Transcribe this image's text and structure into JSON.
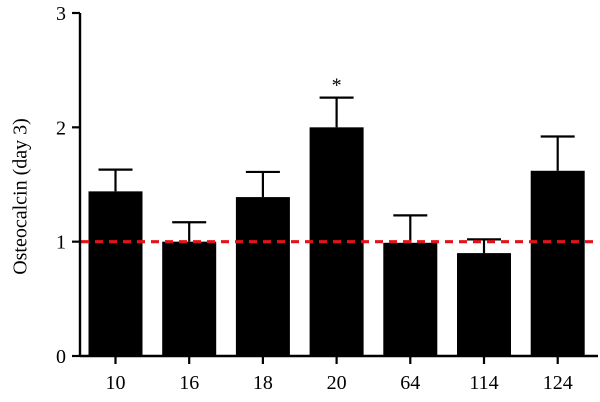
{
  "chart_data": {
    "type": "bar",
    "title": "",
    "xlabel": "",
    "ylabel": "Osteocalcin (day 3)",
    "ylim": [
      0,
      3
    ],
    "yticks": [
      0,
      1,
      2,
      3
    ],
    "categories": [
      "10",
      "16",
      "18",
      "20",
      "64",
      "114",
      "124"
    ],
    "values": [
      1.44,
      1.0,
      1.39,
      2.0,
      0.99,
      0.9,
      1.62
    ],
    "errors": [
      0.19,
      0.17,
      0.22,
      0.26,
      0.24,
      0.12,
      0.3
    ],
    "annotations": [
      {
        "category": "20",
        "text": "*"
      }
    ],
    "reference_line": {
      "y": 1,
      "style": "dashed",
      "color": "#e0151c"
    },
    "bar_color": "#000000",
    "grid": false,
    "legend": "none"
  }
}
